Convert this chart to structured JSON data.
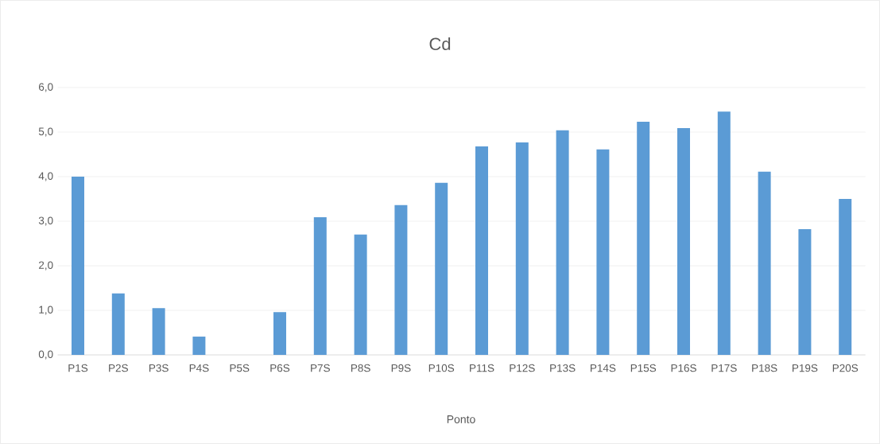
{
  "chart_data": {
    "type": "bar",
    "title": "Cd",
    "xlabel": "Ponto",
    "categories": [
      "P1S",
      "P2S",
      "P3S",
      "P4S",
      "P5S",
      "P6S",
      "P7S",
      "P8S",
      "P9S",
      "P10S",
      "P11S",
      "P12S",
      "P13S",
      "P14S",
      "P15S",
      "P16S",
      "P17S",
      "P18S",
      "P19S",
      "P20S"
    ],
    "values": [
      4.0,
      1.38,
      1.05,
      0.41,
      0,
      0.96,
      3.09,
      2.7,
      3.36,
      3.86,
      4.68,
      4.77,
      5.04,
      4.61,
      5.23,
      5.09,
      5.46,
      4.11,
      2.82,
      3.5
    ],
    "color": "#5b9bd5",
    "ylim": [
      0,
      6
    ],
    "yticks": [
      {
        "value": 0,
        "label": "0,0"
      },
      {
        "value": 1,
        "label": "1,0"
      },
      {
        "value": 2,
        "label": "2,0"
      },
      {
        "value": 3,
        "label": "3,0"
      },
      {
        "value": 4,
        "label": "4,0"
      },
      {
        "value": 5,
        "label": "5,0"
      },
      {
        "value": 6,
        "label": "6,0"
      }
    ],
    "grid": "y"
  }
}
